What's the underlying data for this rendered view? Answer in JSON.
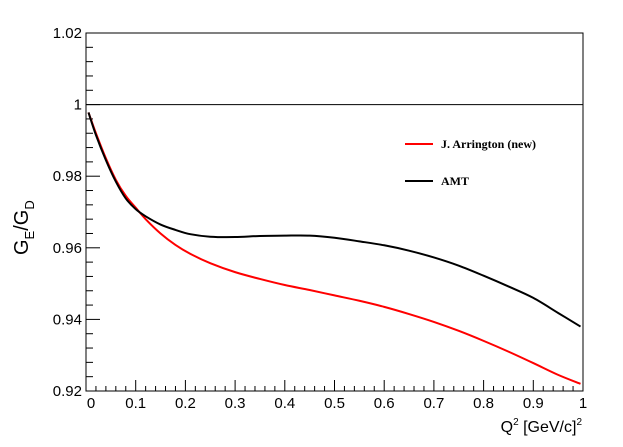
{
  "chart_data": {
    "type": "line",
    "xlim": [
      0,
      1
    ],
    "ylim": [
      0.92,
      1.02
    ],
    "x_ticks": [
      0.1,
      0.2,
      0.3,
      0.4,
      0.5,
      0.6,
      0.7,
      0.8,
      0.9,
      1
    ],
    "x_tick_labels": [
      "0.1",
      "0.2",
      "0.3",
      "0.4",
      "0.5",
      "0.6",
      "0.7",
      "0.8",
      "0.9",
      "1"
    ],
    "y_ticks": [
      0.92,
      0.94,
      0.96,
      0.98,
      1,
      1.02
    ],
    "y_tick_labels": [
      "0.92",
      "0.94",
      "0.96",
      "0.98",
      "1",
      "1.02"
    ],
    "xlabel": {
      "base": "Q",
      "sup": "2",
      "unit": " [GeV/c]",
      "unit_sup": "2"
    },
    "ylabel": {
      "g1": "G",
      "s1": "E",
      "slash": "/",
      "g2": "G",
      "s2": "D"
    },
    "reference_line": 1.0,
    "grid": false,
    "legend_position": "top-right",
    "series": [
      {
        "name": "J. Arrington (new)",
        "color": "#ff0000",
        "x": [
          0.005,
          0.02,
          0.04,
          0.06,
          0.08,
          0.1,
          0.12,
          0.15,
          0.18,
          0.21,
          0.25,
          0.3,
          0.35,
          0.4,
          0.45,
          0.5,
          0.55,
          0.6,
          0.65,
          0.7,
          0.75,
          0.8,
          0.85,
          0.9,
          0.95,
          0.995
        ],
        "y": [
          0.9978,
          0.992,
          0.985,
          0.979,
          0.9745,
          0.9712,
          0.968,
          0.964,
          0.9608,
          0.9583,
          0.9557,
          0.9532,
          0.9513,
          0.9496,
          0.9482,
          0.9467,
          0.9452,
          0.9435,
          0.9415,
          0.9393,
          0.9368,
          0.934,
          0.931,
          0.9278,
          0.9245,
          0.922
        ]
      },
      {
        "name": "AMT",
        "color": "#000000",
        "x": [
          0.005,
          0.02,
          0.04,
          0.06,
          0.08,
          0.1,
          0.12,
          0.15,
          0.18,
          0.21,
          0.25,
          0.3,
          0.35,
          0.4,
          0.45,
          0.5,
          0.55,
          0.6,
          0.65,
          0.7,
          0.75,
          0.8,
          0.85,
          0.9,
          0.95,
          0.995
        ],
        "y": [
          0.9978,
          0.9915,
          0.9845,
          0.9785,
          0.9738,
          0.9708,
          0.9688,
          0.9665,
          0.965,
          0.9638,
          0.9631,
          0.963,
          0.9633,
          0.9634,
          0.9634,
          0.9628,
          0.9618,
          0.9607,
          0.9592,
          0.9573,
          0.955,
          0.9522,
          0.9492,
          0.946,
          0.9418,
          0.938
        ]
      }
    ]
  }
}
